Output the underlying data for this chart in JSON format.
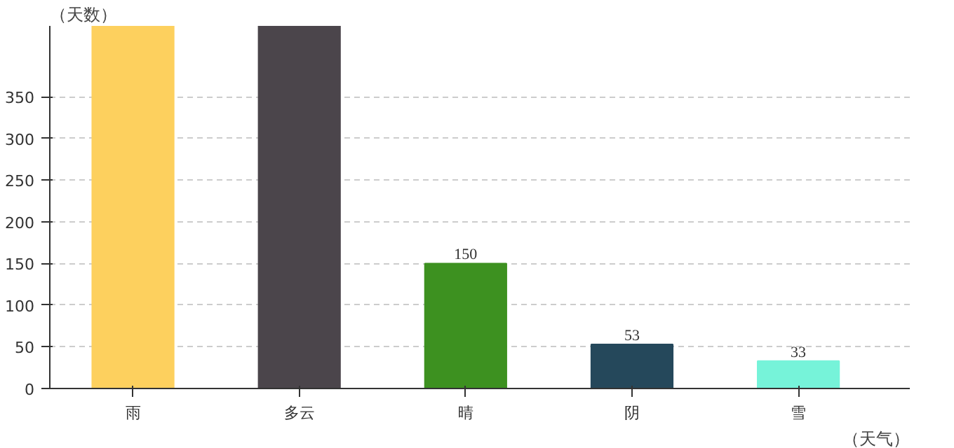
{
  "chart_data": {
    "type": "bar",
    "xlabel": "（天气）",
    "ylabel": "（天数）",
    "categories": [
      "雨",
      "多云",
      "晴",
      "阴",
      "雪"
    ],
    "values": [
      435,
      435,
      150,
      53,
      33
    ],
    "value_labels": [
      null,
      null,
      "150",
      "53",
      "33"
    ],
    "colors": [
      "#fdd05e",
      "#4b454b",
      "#3d9120",
      "#25485b",
      "#76f3d9"
    ],
    "ylim": [
      0,
      435
    ],
    "yticks": [
      0,
      50,
      100,
      150,
      200,
      250,
      300,
      350
    ],
    "grid": "y"
  }
}
